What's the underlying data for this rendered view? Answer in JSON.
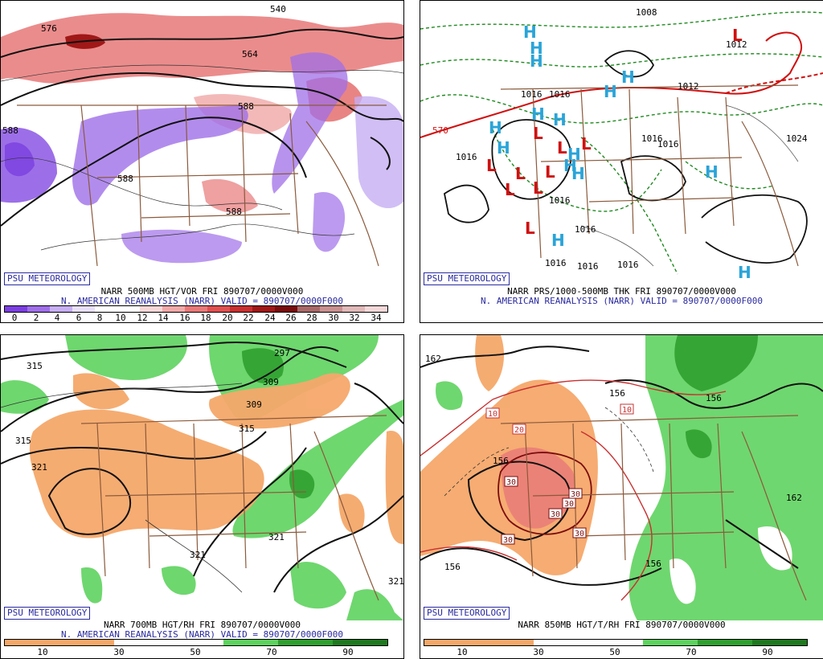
{
  "panels": [
    {
      "id": "tl",
      "psu": "PSU METEOROLOGY",
      "line1": "NARR 500MB HGT/VOR FRI 890707/0000V000",
      "line2": "N. AMERICAN REANALYSIS (NARR) VALID = 890707/0000F000",
      "colorbar": {
        "colors": [
          "#7b3fe0",
          "#9f6fe8",
          "#c6aef2",
          "#e8e0fa",
          "#ffffff",
          "#ffffff",
          "#f7d7d7",
          "#f0a8a8",
          "#e87878",
          "#e05050",
          "#c83030",
          "#a01818",
          "#7a0c0c",
          "#a86868",
          "#c88f8f",
          "#e0b8b8",
          "#f2d8d8"
        ],
        "ticks": [
          "0",
          "2",
          "4",
          "6",
          "8",
          "10",
          "12",
          "14",
          "16",
          "18",
          "20",
          "22",
          "24",
          "26",
          "28",
          "30",
          "32",
          "34"
        ]
      },
      "contour_labels": [
        "576",
        "564",
        "588",
        "588",
        "588",
        "588",
        "540"
      ]
    },
    {
      "id": "tr",
      "psu": "PSU METEOROLOGY",
      "line1": "NARR PRS/1000-500MB THK FRI 890707/0000V000",
      "line2": "N. AMERICAN REANALYSIS (NARR) VALID = 890707/0000F000",
      "contour_labels": [
        "1008",
        "1012",
        "1016",
        "1016",
        "1016",
        "1016",
        "1016",
        "1016",
        "1016",
        "1016",
        "1024",
        "1016",
        "1012",
        "1016",
        "570"
      ],
      "high_symbol": "H",
      "low_symbol": "L"
    },
    {
      "id": "bl",
      "psu": "PSU METEOROLOGY",
      "line1": "NARR 700MB HGT/RH FRI 890707/0000V000",
      "line2": "N. AMERICAN REANALYSIS (NARR) VALID = 890707/0000F000",
      "colorbar": {
        "colors": [
          "#f5a86a",
          "#f5a86a",
          "#ffffff",
          "#ffffff",
          "#5fd35f",
          "#2fa02f",
          "#1f7a1f"
        ],
        "ticks": [
          "10",
          "30",
          "50",
          "70",
          "90"
        ]
      },
      "contour_labels": [
        "315",
        "297",
        "309",
        "309",
        "315",
        "315",
        "321",
        "321",
        "321",
        "321"
      ]
    },
    {
      "id": "br",
      "psu": "PSU METEOROLOGY",
      "line1": "NARR 850MB HGT/T/RH FRI 890707/0000V000",
      "colorbar": {
        "colors": [
          "#f5a86a",
          "#f5a86a",
          "#ffffff",
          "#ffffff",
          "#5fd35f",
          "#2fa02f",
          "#1f7a1f"
        ],
        "ticks": [
          "10",
          "30",
          "50",
          "70",
          "90"
        ]
      },
      "contour_labels": [
        "162",
        "156",
        "156",
        "156",
        "162",
        "156",
        "156"
      ],
      "temp_labels": [
        "10",
        "20",
        "10",
        "30",
        "30",
        "30",
        "30",
        "30",
        "30"
      ]
    }
  ]
}
